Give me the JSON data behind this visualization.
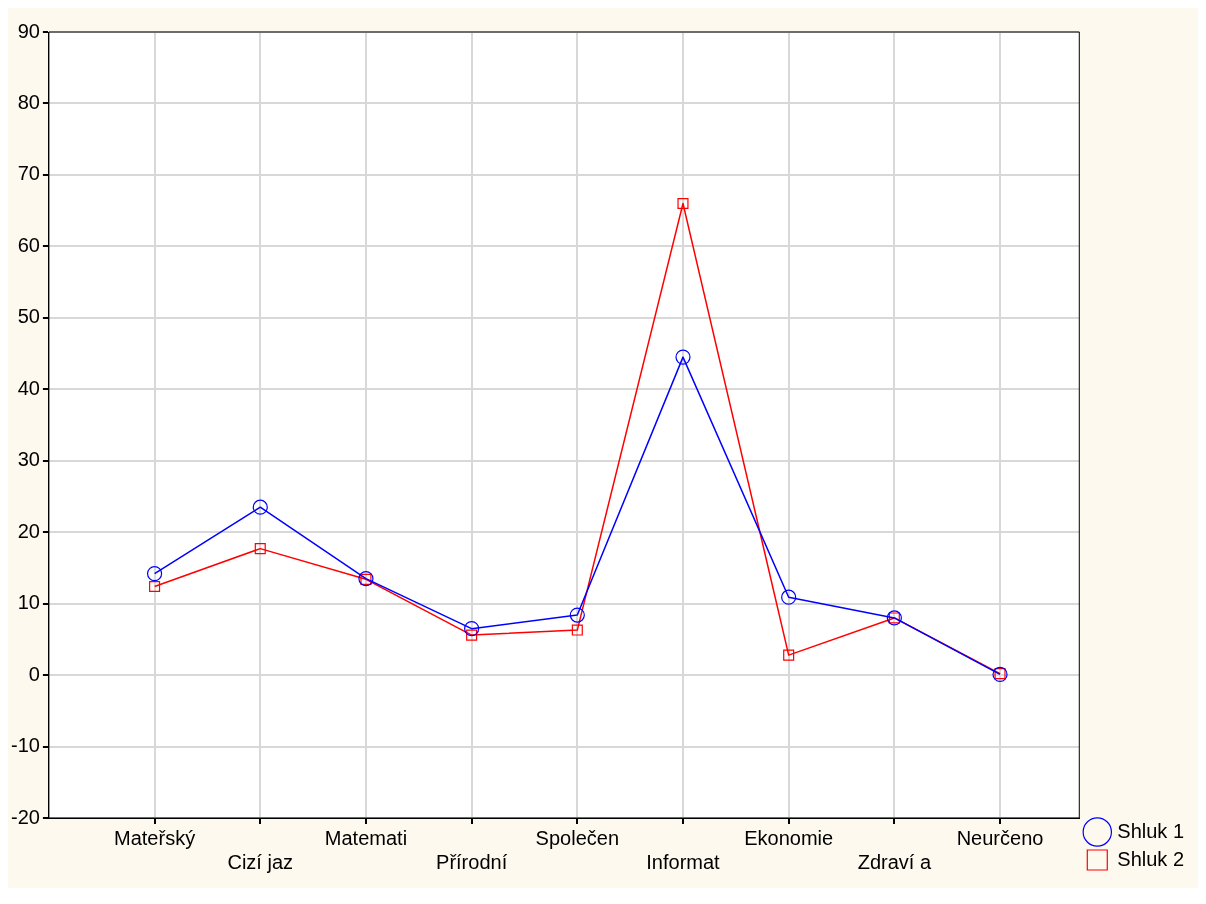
{
  "chart_data": {
    "type": "line",
    "categories": [
      "Mateřský",
      "Cizí jaz",
      "Matemati",
      "Přírodní",
      "Společen",
      "Informat",
      "Ekonomie",
      "Zdraví a",
      "Neurčeno"
    ],
    "series": [
      {
        "name": "Shluk 1",
        "color": "#0000ff",
        "marker": "circle",
        "values": [
          14.2,
          23.5,
          13.5,
          6.5,
          8.4,
          44.5,
          10.9,
          8.0,
          0.1
        ]
      },
      {
        "name": "Shluk 2",
        "color": "#ff0000",
        "marker": "square",
        "values": [
          12.4,
          17.7,
          13.4,
          5.6,
          6.3,
          66.0,
          2.8,
          8.0,
          0.2
        ]
      }
    ],
    "ylim": [
      -20,
      90
    ],
    "yticks": [
      -20,
      -10,
      0,
      10,
      20,
      30,
      40,
      50,
      60,
      70,
      80,
      90
    ],
    "grid": true,
    "legend": "bottom right",
    "line_style": "solid"
  }
}
